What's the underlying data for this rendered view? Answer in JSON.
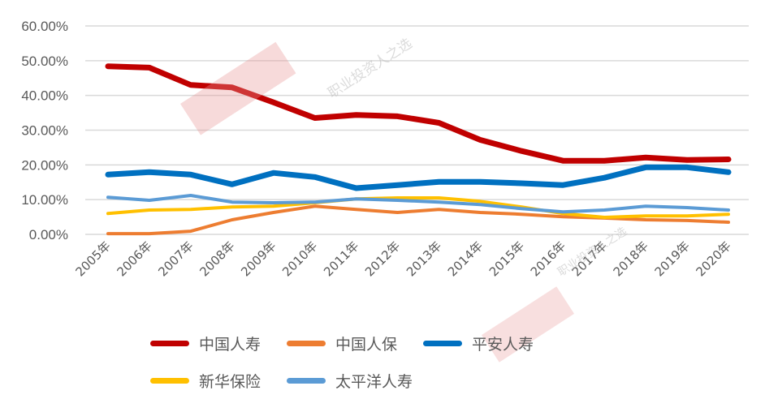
{
  "chart_data": {
    "type": "line",
    "title": "",
    "xlabel": "",
    "ylabel": "",
    "ylim": [
      0,
      60
    ],
    "y_ticks": [
      "0.00%",
      "10.00%",
      "20.00%",
      "30.00%",
      "40.00%",
      "50.00%",
      "60.00%"
    ],
    "grid": true,
    "legend_position": "bottom",
    "categories": [
      "2005年",
      "2006年",
      "2007年",
      "2008年",
      "2009年",
      "2010年",
      "2011年",
      "2012年",
      "2013年",
      "2014年",
      "2015年",
      "2016年",
      "2017年",
      "2018年",
      "2019年",
      "2020年"
    ],
    "series": [
      {
        "name": "中国人寿",
        "color": "#C00000",
        "width": 7,
        "values": [
          48.4,
          48.0,
          43.0,
          42.3,
          38.0,
          33.5,
          34.4,
          34.0,
          32.1,
          27.2,
          24.0,
          21.2,
          21.2,
          22.1,
          21.4,
          21.6
        ]
      },
      {
        "name": "中国人保",
        "color": "#ED7D31",
        "width": 4,
        "values": [
          0.2,
          0.2,
          0.9,
          4.2,
          6.3,
          8.1,
          7.2,
          6.3,
          7.2,
          6.3,
          5.8,
          5.1,
          4.7,
          4.2,
          4.0,
          3.5
        ]
      },
      {
        "name": "平安人寿",
        "color": "#0070C0",
        "width": 7,
        "values": [
          17.2,
          17.9,
          17.2,
          14.4,
          17.7,
          16.5,
          13.3,
          14.2,
          15.1,
          15.1,
          14.7,
          14.2,
          16.3,
          19.3,
          19.3,
          17.9
        ]
      },
      {
        "name": "新华保险",
        "color": "#FFC000",
        "width": 4,
        "values": [
          6.0,
          7.0,
          7.2,
          7.9,
          8.1,
          9.1,
          10.2,
          10.5,
          10.5,
          9.5,
          7.9,
          6.0,
          4.9,
          5.3,
          5.3,
          5.8
        ]
      },
      {
        "name": "太平洋人寿",
        "color": "#5B9BD5",
        "width": 4,
        "values": [
          10.7,
          9.8,
          11.2,
          9.3,
          9.1,
          9.3,
          10.2,
          9.8,
          9.3,
          8.6,
          7.4,
          6.5,
          7.0,
          8.1,
          7.7,
          7.0
        ]
      }
    ]
  },
  "legend": {
    "rows": [
      [
        {
          "label": "中国人寿",
          "color": "#C00000"
        },
        {
          "label": "中国人保",
          "color": "#ED7D31"
        },
        {
          "label": "平安人寿",
          "color": "#0070C0"
        }
      ],
      [
        {
          "label": "新华保险",
          "color": "#FFC000"
        },
        {
          "label": "太平洋人寿",
          "color": "#5B9BD5"
        }
      ]
    ]
  },
  "watermarks": {
    "text": "职业投资人之选"
  }
}
